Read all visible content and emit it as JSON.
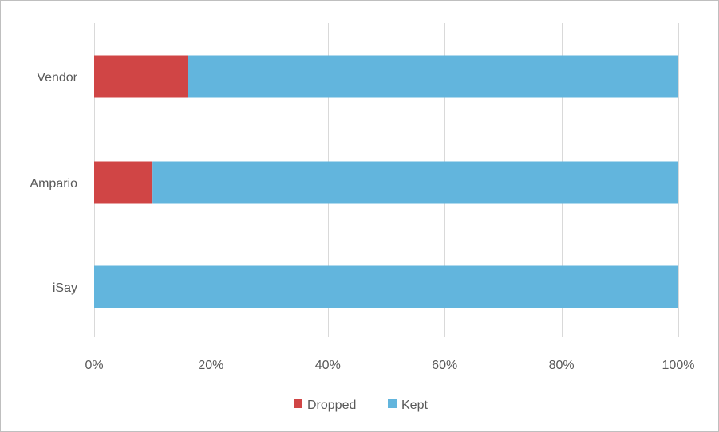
{
  "chart_data": {
    "type": "bar",
    "orientation": "horizontal",
    "stacked": "percent",
    "categories": [
      "Vendor",
      "Ampario",
      "iSay"
    ],
    "series": [
      {
        "name": "Dropped",
        "color": "#d04545",
        "values": [
          16,
          10,
          0
        ]
      },
      {
        "name": "Kept",
        "color": "#62b5dd",
        "values": [
          84,
          90,
          100
        ]
      }
    ],
    "x_ticks": [
      "0%",
      "20%",
      "40%",
      "60%",
      "80%",
      "100%"
    ],
    "xlim": [
      0,
      100
    ],
    "grid": "vertical",
    "legend": "bottom-center",
    "title": "",
    "xlabel": "",
    "ylabel": ""
  }
}
